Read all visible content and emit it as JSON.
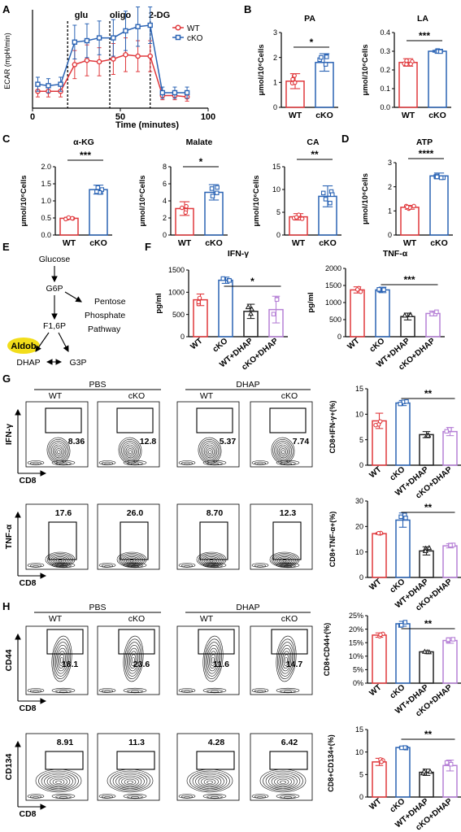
{
  "panel_letters": [
    "A",
    "B",
    "C",
    "D",
    "E",
    "F",
    "G",
    "H"
  ],
  "colors": {
    "wt": "#e0383c",
    "cko": "#2a63b4",
    "wt_dhap": "#222222",
    "cko_dhap": "#b681d6",
    "aldob": "#f2dd1a"
  },
  "panelA": {
    "chart_data": {
      "type": "line",
      "xlabel": "Time (minutes)",
      "ylabel": "ECAR (mpH/min)",
      "x_ticks": [
        0,
        50,
        100
      ],
      "xlim": [
        0,
        100
      ],
      "ylim": [
        0,
        70
      ],
      "markers": [
        {
          "label": "glu",
          "x": 20
        },
        {
          "label": "oligo",
          "x": 44
        },
        {
          "label": "2-DG",
          "x": 67
        }
      ],
      "x": [
        3,
        9,
        16,
        24,
        31,
        38,
        46,
        53,
        60,
        67,
        74,
        81,
        88
      ],
      "series": [
        {
          "name": "WT",
          "values": [
            12,
            12,
            12,
            31,
            34,
            33,
            35,
            38,
            37,
            37,
            9,
            9,
            8
          ]
        },
        {
          "name": "cKO",
          "values": [
            17,
            16,
            17,
            47,
            48,
            50,
            50,
            55,
            58,
            59,
            11,
            11,
            11
          ]
        }
      ],
      "errors": {
        "WT": [
          4,
          4,
          4,
          10,
          11,
          10,
          11,
          12,
          11,
          11,
          3,
          3,
          3
        ],
        "cKO": [
          5,
          5,
          5,
          12,
          12,
          12,
          13,
          14,
          14,
          13,
          4,
          4,
          4
        ]
      }
    }
  },
  "panelB": [
    {
      "title": "PA",
      "ylabel": "μmol/10⁶Cells",
      "sig": "*",
      "chart_data": {
        "type": "bar",
        "categories": [
          "WT",
          "cKO"
        ],
        "values": [
          1.05,
          1.8
        ],
        "errors": [
          0.3,
          0.35
        ],
        "ylim": [
          0,
          3
        ],
        "yticks": [
          0,
          1,
          2,
          3
        ],
        "yticklabels": [
          "0",
          "1",
          "2",
          "3"
        ]
      }
    },
    {
      "title": "LA",
      "ylabel": "μmol/10⁶Cells",
      "sig": "***",
      "chart_data": {
        "type": "bar",
        "categories": [
          "WT",
          "cKO"
        ],
        "values": [
          0.24,
          0.3
        ],
        "errors": [
          0.02,
          0.005
        ],
        "ylim": [
          0,
          0.4
        ],
        "yticks": [
          0,
          0.1,
          0.2,
          0.3,
          0.4
        ],
        "yticklabels": [
          "0.0",
          "0.1",
          "0.2",
          "0.3",
          "0.4"
        ]
      }
    }
  ],
  "panelC": [
    {
      "title": "α-KG",
      "ylabel": "μmol/10⁶Cells",
      "sig": "***",
      "chart_data": {
        "type": "bar",
        "categories": [
          "WT",
          "cKO"
        ],
        "values": [
          0.49,
          1.33
        ],
        "errors": [
          0.03,
          0.13
        ],
        "ylim": [
          0,
          2.0
        ],
        "yticks": [
          0,
          0.5,
          1.0,
          1.5,
          2.0
        ],
        "yticklabels": [
          "0.0",
          "0.5",
          "1.0",
          "1.5",
          "2.0"
        ]
      }
    },
    {
      "title": "Malate",
      "ylabel": "μmol/10⁶Cells",
      "sig": "*",
      "chart_data": {
        "type": "bar",
        "categories": [
          "WT",
          "cKO"
        ],
        "values": [
          3.1,
          5.0
        ],
        "errors": [
          0.8,
          0.9
        ],
        "ylim": [
          0,
          8
        ],
        "yticks": [
          0,
          2,
          4,
          6,
          8
        ],
        "yticklabels": [
          "0",
          "2",
          "4",
          "6",
          "8"
        ]
      }
    },
    {
      "title": "CA",
      "ylabel": "μmol/10⁶Cells",
      "sig": "**",
      "chart_data": {
        "type": "bar",
        "categories": [
          "WT",
          "cKO"
        ],
        "values": [
          4.0,
          8.5
        ],
        "errors": [
          0.7,
          2.3
        ],
        "ylim": [
          0,
          15
        ],
        "yticks": [
          0,
          5,
          10,
          15
        ],
        "yticklabels": [
          "0",
          "5",
          "10",
          "15"
        ]
      }
    }
  ],
  "panelD": {
    "title": "ATP",
    "ylabel": "μmol/10⁶Cells",
    "sig": "****",
    "chart_data": {
      "type": "bar",
      "categories": [
        "WT",
        "cKO"
      ],
      "values": [
        1.15,
        2.45
      ],
      "errors": [
        0.08,
        0.12
      ],
      "ylim": [
        0,
        3
      ],
      "yticks": [
        0,
        1,
        2,
        3
      ],
      "yticklabels": [
        "0",
        "1",
        "2",
        "3"
      ]
    }
  },
  "panelE": {
    "nodes": {
      "glucose": "Glucose",
      "g6p": "G6P",
      "pentose1": "Pentose",
      "pentose2": "Phosphate",
      "pentose3": "Pathway",
      "f16p": "F1,6P",
      "aldob": "Aldob",
      "dhap": "DHAP",
      "g3p": "G3P"
    }
  },
  "panelF": [
    {
      "title": "IFN-γ",
      "ylabel": "pg/ml",
      "sig": "*",
      "chart_data": {
        "type": "bar",
        "categories": [
          "WT",
          "cKO",
          "WT+DHAP",
          "cKO+DHAP"
        ],
        "values": [
          830,
          1270,
          570,
          610
        ],
        "errors": [
          130,
          70,
          160,
          300
        ],
        "ylim": [
          0,
          1500
        ],
        "yticks": [
          0,
          500,
          1000,
          1500
        ],
        "yticklabels": [
          "0",
          "500",
          "1000",
          "1500"
        ]
      }
    },
    {
      "title": "TNF-α",
      "ylabel": "pg/ml",
      "sig": "***",
      "chart_data": {
        "type": "bar",
        "categories": [
          "WT",
          "cKO",
          "WT+DHAP",
          "cKO+DHAP"
        ],
        "values": [
          1370,
          1370,
          590,
          680
        ],
        "errors": [
          90,
          80,
          100,
          70
        ],
        "ylim": [
          0,
          2000
        ],
        "yticks": [
          0,
          500,
          1000,
          1500,
          2000
        ],
        "yticklabels": [
          "0",
          "500",
          "1000",
          "1500",
          "2000"
        ]
      }
    }
  ],
  "groupLabels": {
    "pbs": "PBS",
    "dhap": "DHAP",
    "wt": "WT",
    "cko": "cKO"
  },
  "panelG": {
    "rows": [
      {
        "ylabel": "IFN-γ",
        "xlabel": "CD8",
        "values": [
          "8.36",
          "12.8",
          "5.37",
          "7.74"
        ]
      },
      {
        "ylabel": "TNF-α",
        "xlabel": "CD8",
        "values": [
          "17.6",
          "26.0",
          "8.70",
          "12.3"
        ]
      }
    ],
    "bars": [
      {
        "ylabel": "CD8+IFN-γ+(%)",
        "sig": "**",
        "chart_data": {
          "type": "bar",
          "categories": [
            "WT",
            "cKO",
            "WT+DHAP",
            "cKO+DHAP"
          ],
          "values": [
            8.7,
            12.2,
            6.0,
            6.6
          ],
          "errors": [
            1.5,
            0.5,
            0.6,
            0.8
          ],
          "ylim": [
            0,
            15
          ],
          "yticks": [
            0,
            5,
            10,
            15
          ],
          "yticklabels": [
            "0",
            "5",
            "10",
            "15"
          ]
        }
      },
      {
        "ylabel": "CD8+TNF-α+(%)",
        "sig": "**",
        "chart_data": {
          "type": "bar",
          "categories": [
            "WT",
            "cKO",
            "WT+DHAP",
            "cKO+DHAP"
          ],
          "values": [
            17.2,
            22.5,
            10.4,
            12.4
          ],
          "errors": [
            0.3,
            2.8,
            1.6,
            0.8
          ],
          "ylim": [
            0,
            30
          ],
          "yticks": [
            0,
            10,
            20,
            30
          ],
          "yticklabels": [
            "0",
            "10",
            "20",
            "30"
          ]
        }
      }
    ]
  },
  "panelH": {
    "rows": [
      {
        "ylabel": "CD44",
        "xlabel": "CD8",
        "values": [
          "18.1",
          "23.6",
          "11.6",
          "14.7"
        ]
      },
      {
        "ylabel": "CD134",
        "xlabel": "CD8",
        "values": [
          "8.91",
          "11.3",
          "4.28",
          "6.42"
        ]
      }
    ],
    "bars": [
      {
        "ylabel": "CD8+CD44+(%)",
        "sig": "**",
        "chart_data": {
          "type": "bar",
          "categories": [
            "WT",
            "cKO",
            "WT+DHAP",
            "cKO+DHAP"
          ],
          "values": [
            17.8,
            22.0,
            11.6,
            15.8
          ],
          "errors": [
            0.8,
            0.9,
            0.2,
            1.0
          ],
          "ylim": [
            0,
            25
          ],
          "yticks": [
            0,
            5,
            10,
            15,
            20,
            25
          ],
          "yticklabels": [
            "0%",
            "5%",
            "10%",
            "15%",
            "20%",
            "25%"
          ]
        }
      },
      {
        "ylabel": "CD8+CD134+(%)",
        "sig": "**",
        "chart_data": {
          "type": "bar",
          "categories": [
            "WT",
            "cKO",
            "WT+DHAP",
            "cKO+DHAP"
          ],
          "values": [
            7.8,
            11.0,
            5.5,
            7.0
          ],
          "errors": [
            0.8,
            0.2,
            0.7,
            1.2
          ],
          "ylim": [
            0,
            15
          ],
          "yticks": [
            0,
            5,
            10,
            15
          ],
          "yticklabels": [
            "0",
            "5",
            "10",
            "15"
          ]
        }
      }
    ]
  }
}
